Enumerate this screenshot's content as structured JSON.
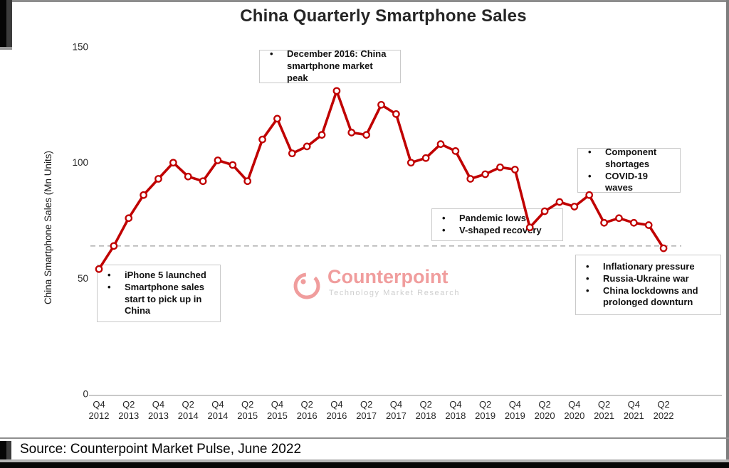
{
  "title": "China Quarterly Smartphone Sales",
  "source": "Source: Counterpoint Market Pulse, June 2022",
  "watermark": {
    "name": "Counterpoint",
    "tagline": "Technology Market Research",
    "logo_color": "#ee8c8c"
  },
  "colors": {
    "line": "#c00000",
    "axis_text": "#262626",
    "axis_line": "#b7b7b7",
    "reference_line": "#b3b3b3"
  },
  "chart_data": {
    "type": "line",
    "title": "China Quarterly Smartphone Sales",
    "xlabel": "",
    "ylabel": "China Smartphone Sales (Mn Units)",
    "ylim": [
      0,
      150
    ],
    "yticks": [
      0,
      50,
      100,
      150
    ],
    "grid": false,
    "legend": false,
    "marker": "open-circle",
    "line_color": "#c00000",
    "x_tick_every": 2,
    "x": [
      "Q4 2012",
      "Q1 2013",
      "Q2 2013",
      "Q3 2013",
      "Q4 2013",
      "Q1 2014",
      "Q2 2014",
      "Q3 2014",
      "Q4 2014",
      "Q1 2015",
      "Q2 2015",
      "Q3 2015",
      "Q4 2015",
      "Q1 2016",
      "Q2 2016",
      "Q3 2016",
      "Q4 2016",
      "Q1 2017",
      "Q2 2017",
      "Q3 2017",
      "Q4 2017",
      "Q1 2018",
      "Q2 2018",
      "Q3 2018",
      "Q4 2018",
      "Q1 2019",
      "Q2 2019",
      "Q3 2019",
      "Q4 2019",
      "Q1 2020",
      "Q2 2020",
      "Q3 2020",
      "Q4 2020",
      "Q1 2021",
      "Q2 2021",
      "Q3 2021",
      "Q4 2021",
      "Q1 2022",
      "Q2 2022"
    ],
    "values": [
      54,
      64,
      76,
      86,
      93,
      100,
      94,
      92,
      101,
      99,
      92,
      110,
      119,
      104,
      107,
      112,
      131,
      113,
      112,
      125,
      121,
      100,
      102,
      108,
      105,
      93,
      95,
      98,
      97,
      72,
      79,
      83,
      81,
      86,
      74,
      76,
      74,
      73,
      63
    ],
    "reference_line": {
      "value": 64,
      "style": "dashed",
      "color": "#b3b3b3"
    }
  },
  "annotations": [
    {
      "id": "dec-2016-peak",
      "lines": [
        "December 2016: China smartphone market peak"
      ]
    },
    {
      "id": "iphone5-launch",
      "lines": [
        "iPhone 5 launched",
        "Smartphone sales start to pick up in China"
      ]
    },
    {
      "id": "pandemic-lows",
      "lines": [
        "Pandemic lows",
        "V-shaped recovery"
      ]
    },
    {
      "id": "component-shortages",
      "lines": [
        "Component shortages",
        "COVID-19 waves"
      ]
    },
    {
      "id": "inflation-downturn",
      "lines": [
        "Inflationary pressure",
        "Russia-Ukraine war",
        "China lockdowns and prolonged downturn"
      ]
    }
  ]
}
